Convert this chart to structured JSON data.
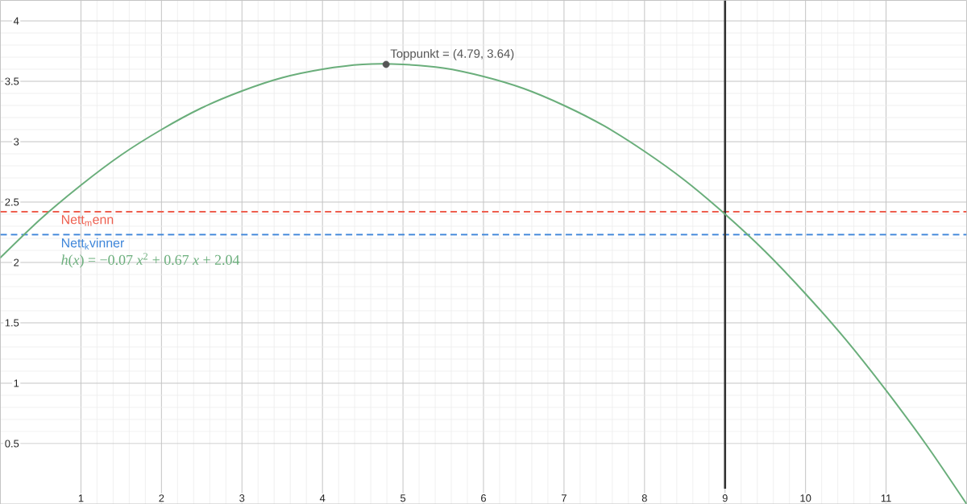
{
  "chart_data": {
    "type": "line",
    "series": [
      {
        "name": "*h*(*x*) = −0.07 *x*$^{2}$ + 0.67 *x* + 2.04",
        "color": "#6aae7b",
        "marker": "none",
        "x": [
          0,
          0.5,
          1,
          1.5,
          2,
          2.5,
          3,
          3.5,
          4,
          4.5,
          5,
          5.5,
          6,
          6.5,
          7,
          7.5,
          8,
          8.5,
          9,
          9.5,
          10,
          10.5,
          11,
          11.5,
          12
        ],
        "values": [
          2.04,
          2.36,
          2.64,
          2.89,
          3.1,
          3.28,
          3.42,
          3.53,
          3.6,
          3.64,
          3.64,
          3.61,
          3.54,
          3.44,
          3.3,
          3.13,
          2.92,
          2.68,
          2.4,
          2.09,
          1.74,
          1.36,
          0.94,
          0.49,
          0.0
        ]
      },
      {
        "type": "scatter",
        "color": "#555555",
        "marker": "circle",
        "x": [
          4.79
        ],
        "values": [
          3.64
        ]
      }
    ],
    "xlim": [
      0,
      12
    ],
    "ylim": [
      0,
      4.17
    ],
    "xticks": [
      1,
      2,
      3,
      4,
      5,
      6,
      7,
      8,
      9,
      10,
      11
    ],
    "yticks": [
      0.5,
      1,
      1.5,
      2,
      2.5,
      3,
      3.5,
      4
    ],
    "grid": true,
    "legend": false,
    "ref_lines": [
      {
        "axis": "y",
        "value": 2.42,
        "label": "Nett$_{m}$enn",
        "color": "#ee5f4f",
        "line_style": "dashed"
      },
      {
        "axis": "y",
        "value": 2.23,
        "label": "Nett$_{k}$vinner",
        "color": "#3d85d9",
        "line_style": "dashed"
      },
      {
        "axis": "x",
        "value": 9,
        "color": "#333333",
        "line_style": "solid"
      }
    ],
    "annotations": [
      {
        "text": "Toppunkt = (4.79, 3.64)",
        "x": 4.79,
        "y": 3.64
      }
    ]
  }
}
